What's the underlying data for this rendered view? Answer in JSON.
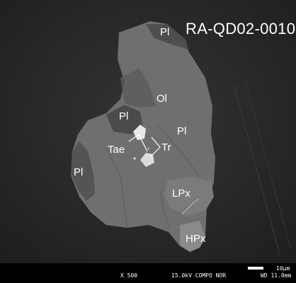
{
  "sample_id": "RA-QD02-0010",
  "labels": {
    "pl_top": "Pl",
    "ol": "Ol",
    "pl_inclusion": "Pl",
    "pl_right": "Pl",
    "tae": "Tae",
    "tr": "Tr",
    "pl_left": "Pl",
    "lpx": "LPx",
    "hpx": "HPx"
  },
  "info_bar": {
    "magnification": "X 500",
    "conditions": "15.0kV COMPO  NOR",
    "working_distance": "WD 11.0mm",
    "scale_label": "10µm"
  },
  "colors": {
    "background": "#2b2b2b",
    "olivine": "#6f6f6f",
    "plagioclase": "#4c4c4c",
    "pyroxene": "#7a7a7a",
    "metal": "#e8e8e8"
  }
}
